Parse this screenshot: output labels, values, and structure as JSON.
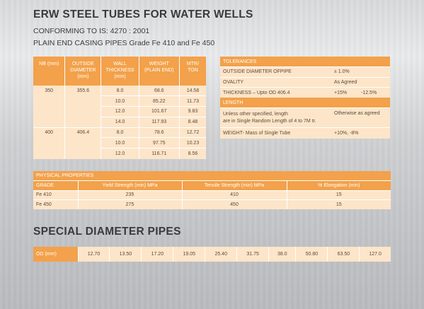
{
  "title": "ERW STEEL TUBES FOR WATER WELLS",
  "subtitle1": "CONFORMING TO IS: 4270 : 2001",
  "subtitle2": "PLAIN END CASING PIPES Grade Fe 410 and Fe 450",
  "main_table": {
    "headers": {
      "nb": "NB (mm)",
      "od_1": "OUTSIDE",
      "od_2": "DIAMETER",
      "od_3": "(mm)",
      "wall_1": "WALL",
      "wall_2": "THICKNESS",
      "wall_3": "(mm)",
      "weight_1": "WEIGHT",
      "weight_2": "(PLAIN END)",
      "mtr_1": "MTR/",
      "mtr_2": "TON"
    },
    "rows": [
      {
        "nb": "350",
        "od": "355.6",
        "wall": "8.0",
        "weight": "68.6",
        "mtr": "14.58"
      },
      {
        "nb": "",
        "od": "",
        "wall": "10.0",
        "weight": "85.22",
        "mtr": "11.73"
      },
      {
        "nb": "",
        "od": "",
        "wall": "12.0",
        "weight": "101.67",
        "mtr": "9.83"
      },
      {
        "nb": "",
        "od": "",
        "wall": "14.0",
        "weight": "117.93",
        "mtr": "8.48"
      },
      {
        "nb": "400",
        "od": "406.4",
        "wall": "8.0",
        "weight": "78.6",
        "mtr": "12.72"
      },
      {
        "nb": "",
        "od": "",
        "wall": "10.0",
        "weight": "97.75",
        "mtr": "10.23"
      },
      {
        "nb": "",
        "od": "",
        "wall": "12.0",
        "weight": "116.71",
        "mtr": "8.56"
      }
    ]
  },
  "tolerances": {
    "heading": "TOLERANCES",
    "od_label": "OUTSIDE DIAMETER OFPIPE",
    "od_value": "± 1.0%",
    "ovality_label": "OVALITY",
    "ovality_value": "As Agreed",
    "thickness_label": "THICKNESS – Upto OD 406.4",
    "thickness_plus": "+15%",
    "thickness_minus": "-12.5%",
    "length_heading": "LENGTH",
    "length_text_1": "Unless other specified, length",
    "length_text_2": "are in Single Random Length of 4 to 7M tr.",
    "length_value": "Otherwise as agreed",
    "weight_label": "WEIGHT- Mass of Single Tube",
    "weight_value": "+10%, -8%"
  },
  "physical": {
    "heading": "PHYSICAL PROPERTIES",
    "col_grade": "GRADE",
    "col_yield": "Yield Strength (min) MPa",
    "col_tensile": "Tensile Strength (min) MPa",
    "col_elong": "% Elongation (min)",
    "rows": [
      {
        "grade": "Fe 410",
        "yield": "235",
        "tensile": "410",
        "elong": "15"
      },
      {
        "grade": "Fe 450",
        "yield": "275",
        "tensile": "450",
        "elong": "15"
      }
    ]
  },
  "special": {
    "title": "SPECIAL DIAMETER PIPES",
    "label": "OD (mm)",
    "values": [
      "12.70",
      "13.50",
      "17.20",
      "19.05",
      "25.40",
      "31.75",
      "38.0",
      "50.80",
      "63.50",
      "127.0"
    ]
  }
}
